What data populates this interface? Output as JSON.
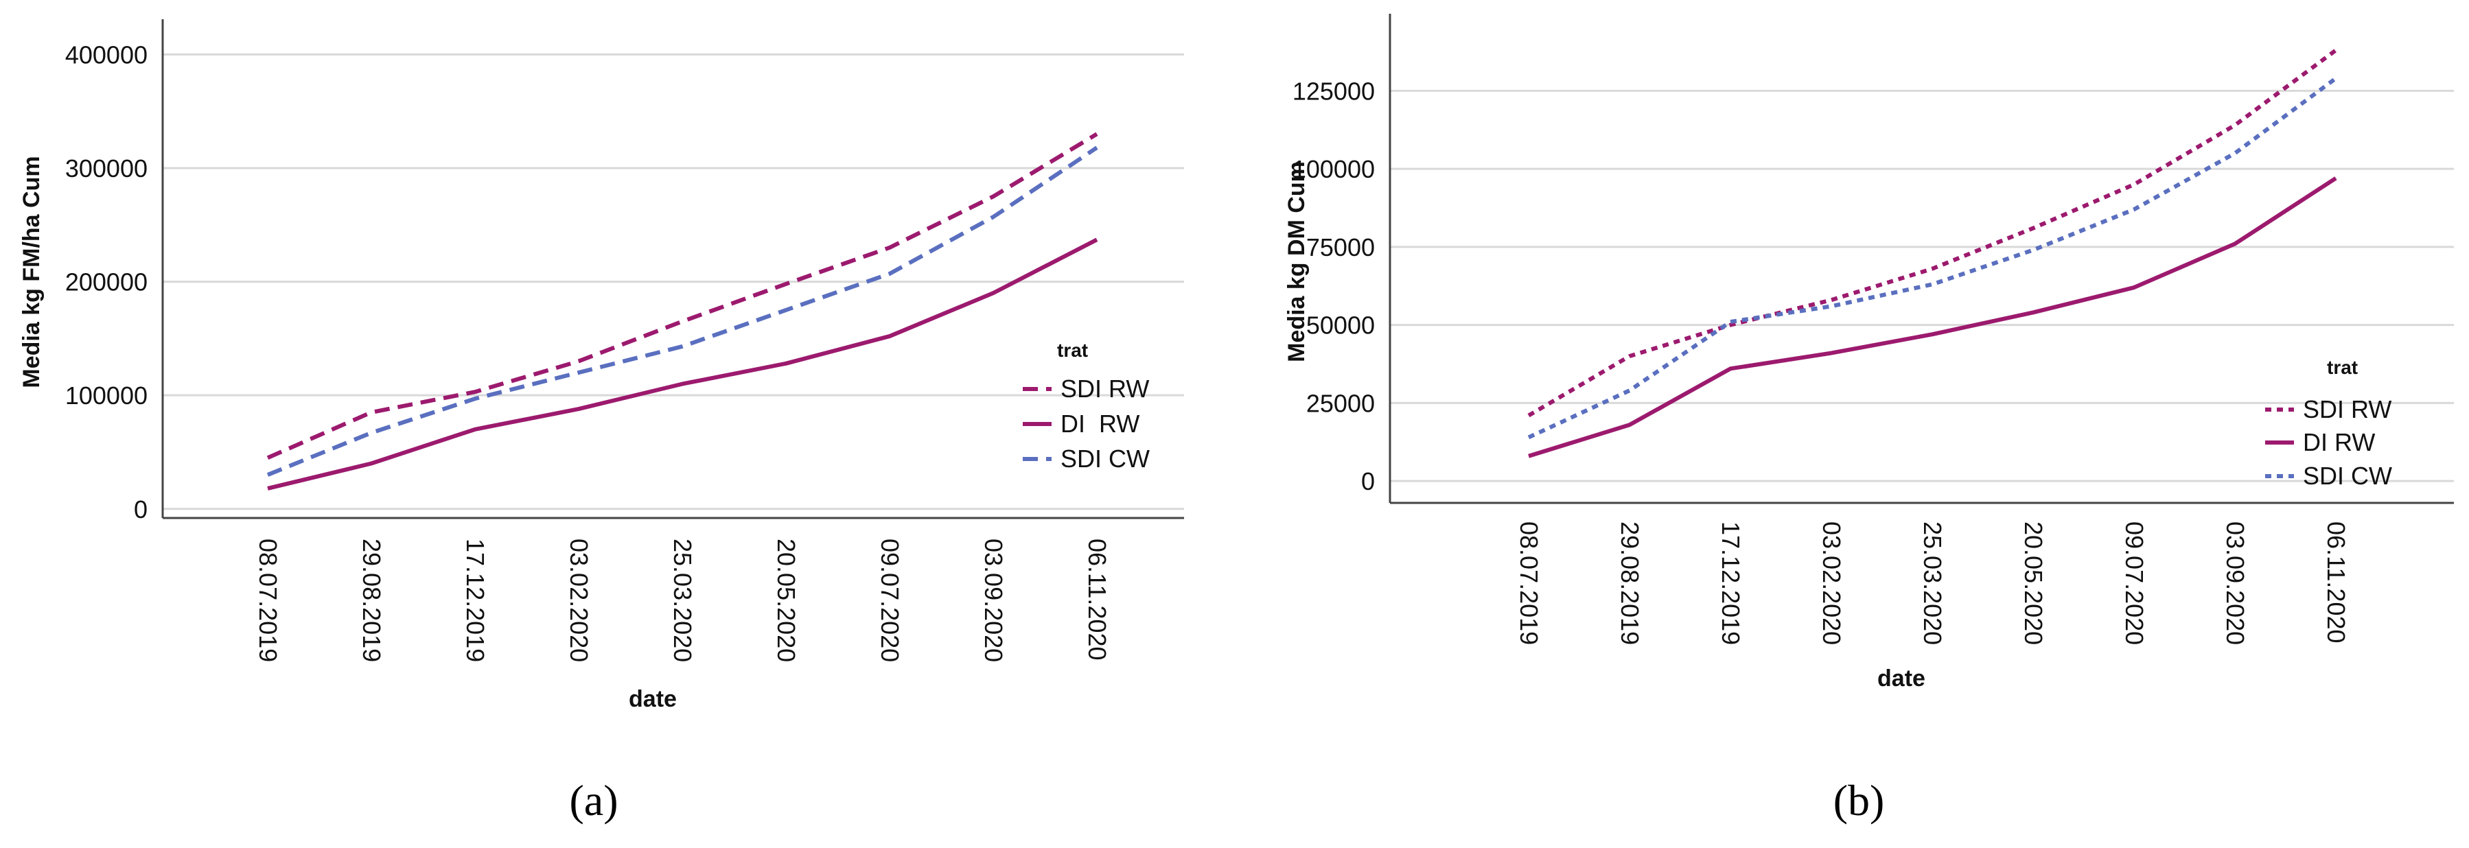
{
  "captions": [
    "(a)",
    "(b)"
  ],
  "chart_data": [
    {
      "type": "line",
      "title": "",
      "xlabel": "date",
      "ylabel": "Media kg FM/ha Cum",
      "categories": [
        "08.07.2019",
        "29.08.2019",
        "17.12.2019",
        "03.02.2020",
        "25.03.2020",
        "20.05.2020",
        "09.07.2020",
        "03.09.2020",
        "06.11.2020"
      ],
      "ylim": [
        -8000,
        425000
      ],
      "yticks": [
        0,
        100000,
        200000,
        300000,
        400000
      ],
      "ytick_labels": [
        "0",
        "100000",
        "200000",
        "300000",
        "400000"
      ],
      "grid": true,
      "legend": {
        "title": "trat",
        "position": "right"
      },
      "series": [
        {
          "name": "SDI RW",
          "color": "#9C1A6E",
          "dash": "dashed",
          "values": [
            45000,
            85000,
            103000,
            130000,
            165000,
            198000,
            230000,
            275000,
            330000
          ]
        },
        {
          "name": "DI  RW",
          "color": "#9C1A6E",
          "dash": "solid",
          "values": [
            18000,
            40000,
            70000,
            88000,
            110000,
            128000,
            152000,
            190000,
            237000
          ]
        },
        {
          "name": "SDI CW",
          "color": "#5A6FBF",
          "dash": "dashed",
          "values": [
            30000,
            67000,
            97000,
            120000,
            143000,
            175000,
            207000,
            257000,
            318000
          ]
        }
      ]
    },
    {
      "type": "line",
      "title": "",
      "xlabel": "date",
      "ylabel": "Media kg DM Cum",
      "categories": [
        "08.07.2019",
        "29.08.2019",
        "17.12.2019",
        "03.02.2020",
        "25.03.2020",
        "20.05.2020",
        "09.07.2020",
        "03.09.2020",
        "06.11.2020"
      ],
      "ylim": [
        -7000,
        147500
      ],
      "yticks": [
        0,
        25000,
        50000,
        75000,
        100000,
        125000
      ],
      "ytick_labels": [
        "0",
        "25000",
        "50000",
        "75000",
        "100000",
        "125000"
      ],
      "grid": true,
      "legend": {
        "title": "trat",
        "position": "right"
      },
      "series": [
        {
          "name": "SDI RW",
          "color": "#9C1A6E",
          "dash": "dotted",
          "values": [
            21000,
            40000,
            50000,
            58000,
            68000,
            81000,
            95000,
            114000,
            138000
          ]
        },
        {
          "name": "DI RW",
          "color": "#9C1A6E",
          "dash": "solid",
          "values": [
            8000,
            18000,
            36000,
            41000,
            47000,
            54000,
            62000,
            76000,
            97000
          ]
        },
        {
          "name": "SDI CW",
          "color": "#5A6FBF",
          "dash": "dotted",
          "values": [
            14000,
            29000,
            51000,
            56000,
            63000,
            74000,
            87000,
            105000,
            129000
          ]
        }
      ]
    }
  ]
}
